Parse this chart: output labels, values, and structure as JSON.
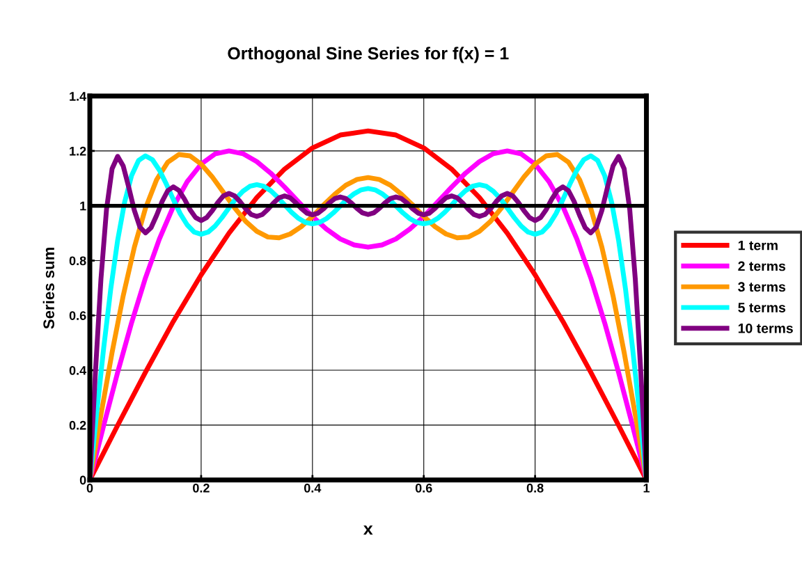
{
  "chart_data": {
    "type": "line",
    "title": "Orthogonal Sine Series for f(x) = 1",
    "xlabel": "x",
    "ylabel": "Series sum",
    "xlim": [
      0,
      1
    ],
    "xticks": [
      0,
      0.2,
      0.4,
      0.6,
      0.8,
      1
    ],
    "ylim": [
      0,
      1.4
    ],
    "yticks": [
      0,
      0.2,
      0.4,
      0.6,
      0.8,
      1,
      1.2,
      1.4
    ],
    "grid": true,
    "legend": "right",
    "marker": "none",
    "line_style": "solid",
    "ref_lines": [
      {
        "axis": "y",
        "value": 1,
        "color": "#000000"
      }
    ],
    "series": [
      {
        "name": "1 term",
        "color": "#ff0000",
        "x": [
          0,
          0.05,
          0.1,
          0.15,
          0.2,
          0.25,
          0.3,
          0.35,
          0.4,
          0.45,
          0.5,
          0.55,
          0.6,
          0.65,
          0.7,
          0.75,
          0.8,
          0.85,
          0.9,
          0.95,
          1
        ],
        "values": [
          0,
          0.199,
          0.393,
          0.578,
          0.748,
          0.9,
          1.03,
          1.134,
          1.211,
          1.258,
          1.273,
          1.258,
          1.211,
          1.134,
          1.03,
          0.9,
          0.748,
          0.578,
          0.393,
          0.199,
          0
        ]
      },
      {
        "name": "2 terms",
        "color": "#ff00ff",
        "x": [
          0,
          0.025,
          0.05,
          0.075,
          0.1,
          0.125,
          0.15,
          0.175,
          0.2,
          0.225,
          0.25,
          0.275,
          0.3,
          0.325,
          0.35,
          0.375,
          0.4,
          0.425,
          0.45,
          0.475,
          0.5,
          0.525,
          0.55,
          0.575,
          0.6,
          0.625,
          0.65,
          0.675,
          0.7,
          0.725,
          0.75,
          0.775,
          0.8,
          0.825,
          0.85,
          0.875,
          0.9,
          0.925,
          0.95,
          0.975,
          1
        ],
        "values": [
          0,
          0.199,
          0.392,
          0.573,
          0.737,
          0.879,
          0.997,
          1.088,
          1.152,
          1.189,
          1.2,
          1.19,
          1.161,
          1.119,
          1.068,
          1.014,
          0.961,
          0.915,
          0.879,
          0.857,
          0.849,
          0.857,
          0.879,
          0.915,
          0.961,
          1.014,
          1.068,
          1.119,
          1.161,
          1.19,
          1.2,
          1.189,
          1.152,
          1.088,
          0.997,
          0.879,
          0.737,
          0.573,
          0.392,
          0.199,
          0
        ]
      },
      {
        "name": "3 terms",
        "color": "#ff9900",
        "x": [
          0,
          0.02,
          0.04,
          0.06,
          0.08,
          0.1,
          0.12,
          0.14,
          0.16,
          0.18,
          0.2,
          0.22,
          0.24,
          0.26,
          0.28,
          0.3,
          0.32,
          0.34,
          0.36,
          0.38,
          0.4,
          0.42,
          0.44,
          0.46,
          0.48,
          0.5,
          0.52,
          0.54,
          0.56,
          0.58,
          0.6,
          0.62,
          0.64,
          0.66,
          0.68,
          0.7,
          0.72,
          0.74,
          0.76,
          0.78,
          0.8,
          0.82,
          0.84,
          0.86,
          0.88,
          0.9,
          0.92,
          0.94,
          0.96,
          0.98,
          1
        ],
        "values": [
          0,
          0.238,
          0.465,
          0.672,
          0.849,
          0.991,
          1.095,
          1.159,
          1.187,
          1.182,
          1.152,
          1.105,
          1.049,
          0.993,
          0.943,
          0.907,
          0.886,
          0.883,
          0.897,
          0.924,
          0.961,
          1.003,
          1.042,
          1.075,
          1.096,
          1.103,
          1.096,
          1.075,
          1.042,
          1.003,
          0.961,
          0.924,
          0.897,
          0.883,
          0.886,
          0.907,
          0.943,
          0.993,
          1.049,
          1.105,
          1.152,
          1.182,
          1.187,
          1.159,
          1.095,
          0.991,
          0.849,
          0.672,
          0.465,
          0.238,
          0
        ]
      },
      {
        "name": "5 terms",
        "color": "#00ffff",
        "x": [
          0,
          0.0125,
          0.025,
          0.0375,
          0.05,
          0.0625,
          0.075,
          0.0875,
          0.1,
          0.1125,
          0.125,
          0.1375,
          0.15,
          0.1625,
          0.175,
          0.1875,
          0.2,
          0.2125,
          0.225,
          0.2375,
          0.25,
          0.2625,
          0.275,
          0.2875,
          0.3,
          0.3125,
          0.325,
          0.3375,
          0.35,
          0.3625,
          0.375,
          0.3875,
          0.4,
          0.4125,
          0.425,
          0.4375,
          0.45,
          0.4625,
          0.475,
          0.4875,
          0.5,
          0.5125,
          0.525,
          0.5375,
          0.55,
          0.5625,
          0.575,
          0.5875,
          0.6,
          0.6125,
          0.625,
          0.6375,
          0.65,
          0.6625,
          0.675,
          0.6875,
          0.7,
          0.7125,
          0.725,
          0.7375,
          0.75,
          0.7625,
          0.775,
          0.7875,
          0.8,
          0.8125,
          0.825,
          0.8375,
          0.85,
          0.8625,
          0.875,
          0.8875,
          0.9,
          0.9125,
          0.925,
          0.9375,
          0.95,
          0.9625,
          0.975,
          0.9875,
          1
        ],
        "values": [
          0,
          0.248,
          0.483,
          0.695,
          0.874,
          1.013,
          1.11,
          1.165,
          1.182,
          1.168,
          1.13,
          1.079,
          1.023,
          0.971,
          0.93,
          0.904,
          0.896,
          0.904,
          0.926,
          0.957,
          0.992,
          1.026,
          1.053,
          1.071,
          1.077,
          1.071,
          1.055,
          1.031,
          1.003,
          0.976,
          0.954,
          0.939,
          0.934,
          0.939,
          0.953,
          0.974,
          0.999,
          1.024,
          1.044,
          1.058,
          1.063,
          1.058,
          1.044,
          1.024,
          0.999,
          0.974,
          0.953,
          0.939,
          0.934,
          0.939,
          0.954,
          0.976,
          1.003,
          1.031,
          1.055,
          1.071,
          1.077,
          1.071,
          1.053,
          1.026,
          0.992,
          0.957,
          0.926,
          0.904,
          0.896,
          0.904,
          0.93,
          0.971,
          1.023,
          1.079,
          1.13,
          1.168,
          1.182,
          1.165,
          1.11,
          1.013,
          0.874,
          0.695,
          0.483,
          0.248,
          0
        ]
      },
      {
        "name": "10 terms",
        "color": "#800080",
        "x": [
          0,
          0.01,
          0.02,
          0.03,
          0.04,
          0.05,
          0.06,
          0.07,
          0.08,
          0.09,
          0.1,
          0.11,
          0.12,
          0.13,
          0.14,
          0.15,
          0.16,
          0.17,
          0.18,
          0.19,
          0.2,
          0.21,
          0.22,
          0.23,
          0.24,
          0.25,
          0.26,
          0.27,
          0.28,
          0.29,
          0.3,
          0.31,
          0.32,
          0.33,
          0.34,
          0.35,
          0.36,
          0.37,
          0.38,
          0.39,
          0.4,
          0.41,
          0.42,
          0.43,
          0.44,
          0.45,
          0.46,
          0.47,
          0.48,
          0.49,
          0.5,
          0.51,
          0.52,
          0.53,
          0.54,
          0.55,
          0.56,
          0.57,
          0.58,
          0.59,
          0.6,
          0.61,
          0.62,
          0.63,
          0.64,
          0.65,
          0.66,
          0.67,
          0.68,
          0.69,
          0.7,
          0.71,
          0.72,
          0.73,
          0.74,
          0.75,
          0.76,
          0.77,
          0.78,
          0.79,
          0.8,
          0.81,
          0.82,
          0.83,
          0.84,
          0.85,
          0.86,
          0.87,
          0.88,
          0.89,
          0.9,
          0.91,
          0.92,
          0.93,
          0.94,
          0.95,
          0.96,
          0.97,
          0.98,
          0.99,
          1
        ],
        "values": [
          0,
          0.391,
          0.733,
          0.987,
          1.135,
          1.18,
          1.145,
          1.067,
          0.983,
          0.922,
          0.901,
          0.92,
          0.965,
          1.016,
          1.055,
          1.069,
          1.056,
          1.024,
          0.986,
          0.957,
          0.946,
          0.957,
          0.982,
          1.012,
          1.036,
          1.045,
          1.036,
          1.015,
          0.989,
          0.968,
          0.961,
          0.968,
          0.987,
          1.01,
          1.029,
          1.036,
          1.029,
          1.011,
          0.99,
          0.973,
          0.967,
          0.973,
          0.989,
          1.01,
          1.026,
          1.032,
          1.026,
          1.01,
          0.99,
          0.974,
          0.968,
          0.974,
          0.99,
          1.01,
          1.026,
          1.032,
          1.026,
          1.01,
          0.989,
          0.973,
          0.967,
          0.973,
          0.99,
          1.011,
          1.029,
          1.036,
          1.029,
          1.01,
          0.987,
          0.968,
          0.961,
          0.968,
          0.989,
          1.015,
          1.036,
          1.045,
          1.036,
          1.012,
          0.982,
          0.957,
          0.946,
          0.957,
          0.986,
          1.024,
          1.056,
          1.069,
          1.055,
          1.016,
          0.965,
          0.92,
          0.901,
          0.922,
          0.983,
          1.067,
          1.145,
          1.18,
          1.135,
          0.987,
          0.733,
          0.391,
          0
        ]
      }
    ]
  }
}
